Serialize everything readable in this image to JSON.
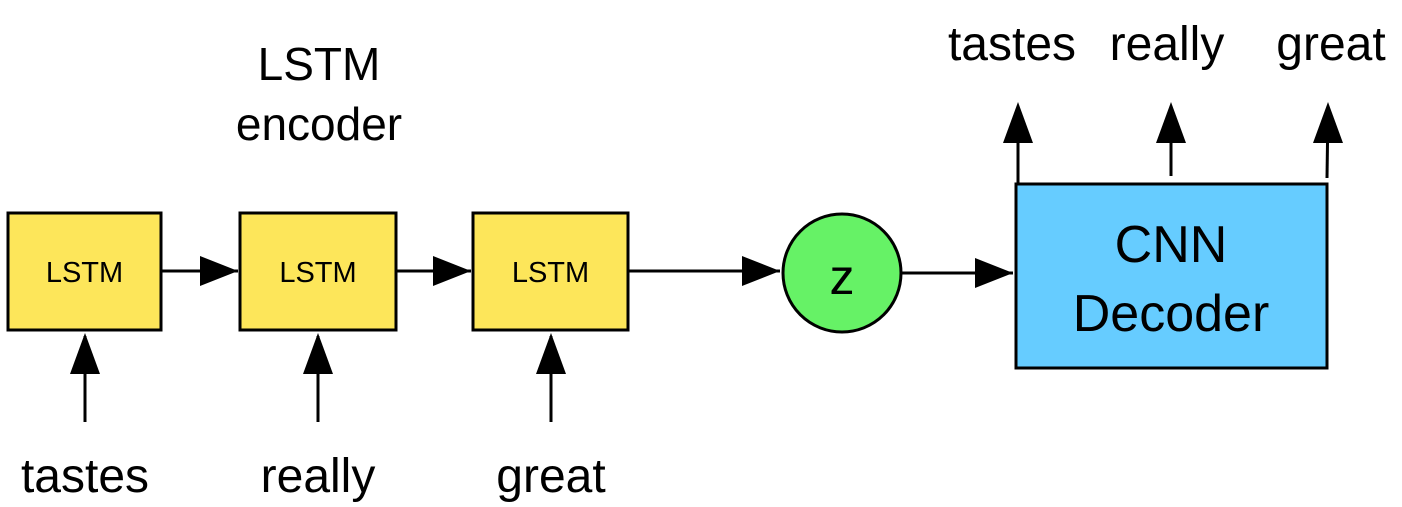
{
  "colors": {
    "lstm_fill": "#fde65a",
    "z_fill": "#66f266",
    "decoder_fill": "#66ccff",
    "stroke": "#000000"
  },
  "encoder": {
    "title_line1": "LSTM",
    "title_line2": "encoder",
    "cells": [
      {
        "label": "LSTM",
        "input": "tastes"
      },
      {
        "label": "LSTM",
        "input": "really"
      },
      {
        "label": "LSTM",
        "input": "great"
      }
    ]
  },
  "latent": {
    "label": "z"
  },
  "decoder": {
    "label_line1": "CNN",
    "label_line2": "Decoder",
    "outputs": [
      "tastes",
      "really",
      "great"
    ]
  }
}
